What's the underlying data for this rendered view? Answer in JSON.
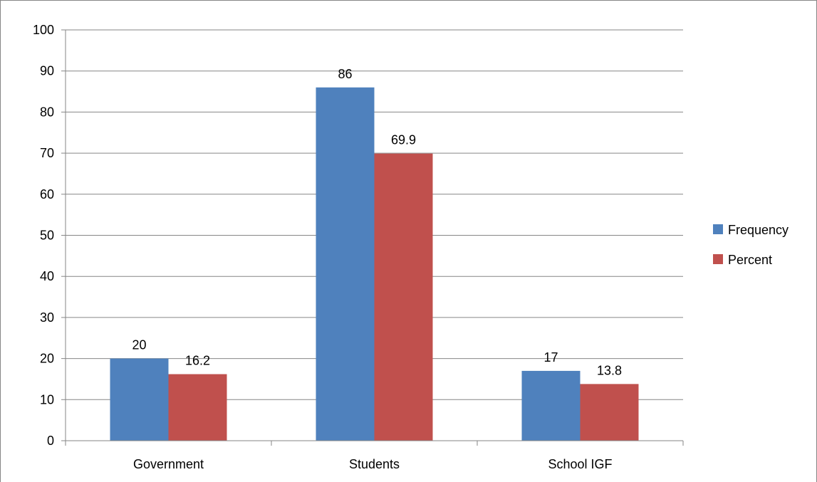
{
  "chart_data": {
    "type": "bar",
    "categories": [
      "Government",
      "Students",
      "School IGF"
    ],
    "series": [
      {
        "name": "Frequency",
        "values": [
          20,
          86,
          17
        ],
        "labels": [
          "20",
          "86",
          "17"
        ],
        "color": "#4f81bd"
      },
      {
        "name": "Percent",
        "values": [
          16.2,
          69.9,
          13.8
        ],
        "labels": [
          "16.2",
          "69.9",
          "13.8"
        ],
        "color": "#c0504d"
      }
    ],
    "yticks": [
      "0",
      "10",
      "20",
      "30",
      "40",
      "50",
      "60",
      "70",
      "80",
      "90",
      "100"
    ],
    "ylim": [
      0,
      100
    ],
    "grid": true,
    "gridline_color": "#868686",
    "legend_position": "right",
    "title": "",
    "xlabel": "",
    "ylabel": ""
  }
}
